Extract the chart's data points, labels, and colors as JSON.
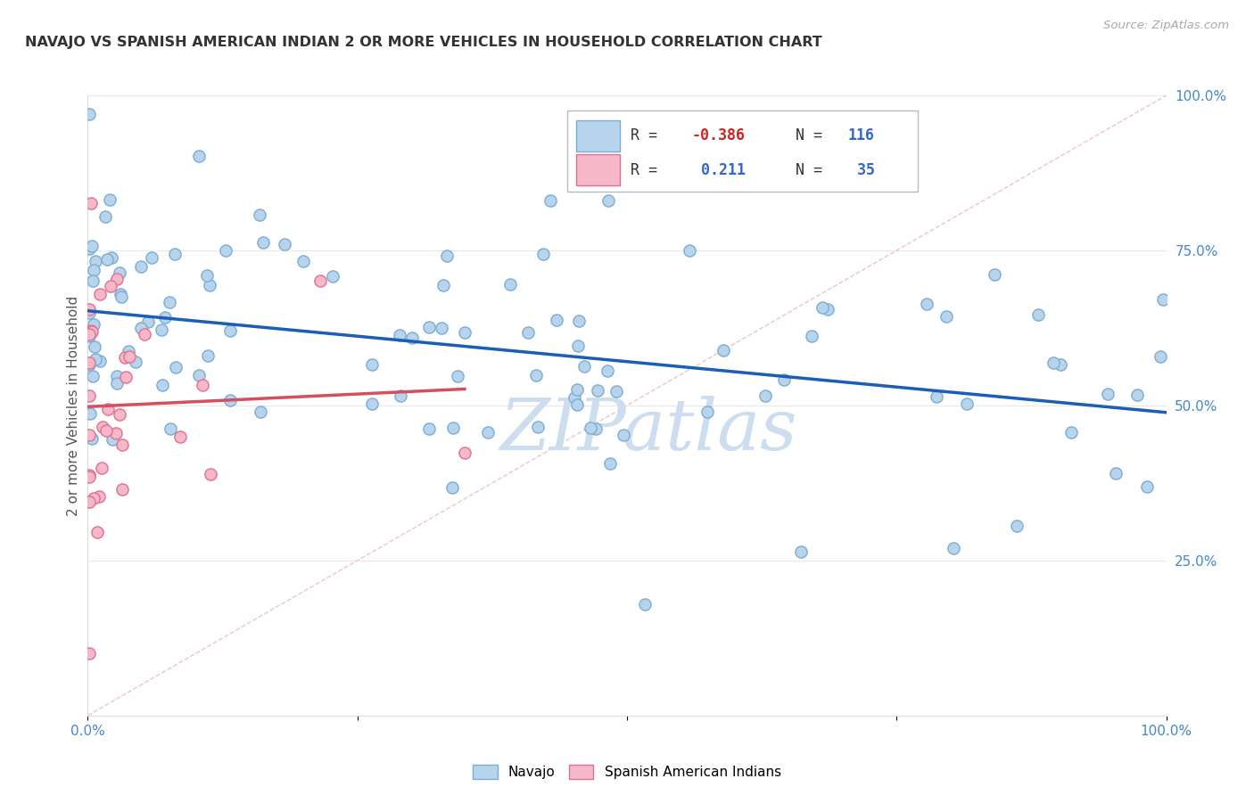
{
  "title": "NAVAJO VS SPANISH AMERICAN INDIAN 2 OR MORE VEHICLES IN HOUSEHOLD CORRELATION CHART",
  "source": "Source: ZipAtlas.com",
  "ylabel": "2 or more Vehicles in Household",
  "navajo_color": "#b8d4ec",
  "navajo_edge_color": "#7aadd4",
  "spanish_color": "#f4b8c8",
  "spanish_edge_color": "#e07090",
  "navajo_R": -0.386,
  "navajo_N": 116,
  "spanish_R": 0.211,
  "spanish_N": 35,
  "navajo_line_color": "#1a5eb8",
  "spanish_line_color": "#d45060",
  "diagonal_color": "#e8b8b8",
  "watermark_text": "ZIPatlas",
  "watermark_color": "#ccddf0",
  "bg_color": "#ffffff",
  "grid_color": "#e8e8e8",
  "tick_color": "#4488cc",
  "title_color": "#333333",
  "legend_box_color": "#cccccc",
  "legend_text_color": "#3366cc",
  "legend_r1_color": "#cc0000",
  "legend_r2_color": "#cc0000"
}
